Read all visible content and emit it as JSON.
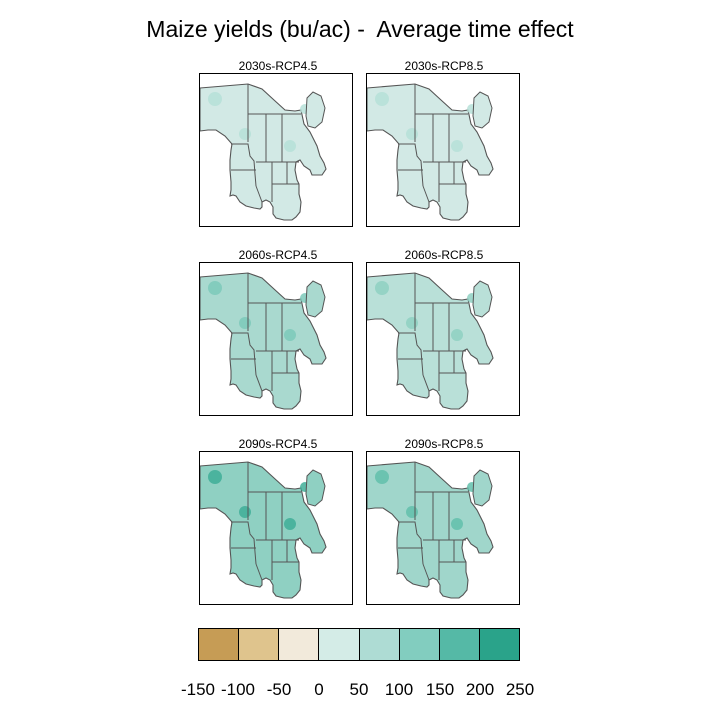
{
  "title": "Maize yields (bu/ac) -  Average time effect",
  "panels": [
    {
      "label": "2030s-RCP4.5",
      "fill": "#d2e9e5",
      "hot": "#b6e0d8"
    },
    {
      "label": "2030s-RCP8.5",
      "fill": "#d2e9e5",
      "hot": "#b6e0d8"
    },
    {
      "label": "2060s-RCP4.5",
      "fill": "#a9d9cf",
      "hot": "#7cc9ba"
    },
    {
      "label": "2060s-RCP8.5",
      "fill": "#b9e0d8",
      "hot": "#8ed0c2"
    },
    {
      "label": "2090s-RCP4.5",
      "fill": "#8fd0c2",
      "hot": "#3fae98"
    },
    {
      "label": "2090s-RCP8.5",
      "fill": "#a0d6cb",
      "hot": "#62bfac"
    }
  ],
  "legend": {
    "colors": [
      "#c69c55",
      "#dfc48d",
      "#f2eadb",
      "#d4ece7",
      "#aedcd4",
      "#82cdbf",
      "#55b9a6",
      "#2aa38a"
    ],
    "ticks": [
      "-150",
      "-100",
      "-50",
      "0",
      "50",
      "100",
      "150",
      "200",
      "250"
    ]
  }
}
